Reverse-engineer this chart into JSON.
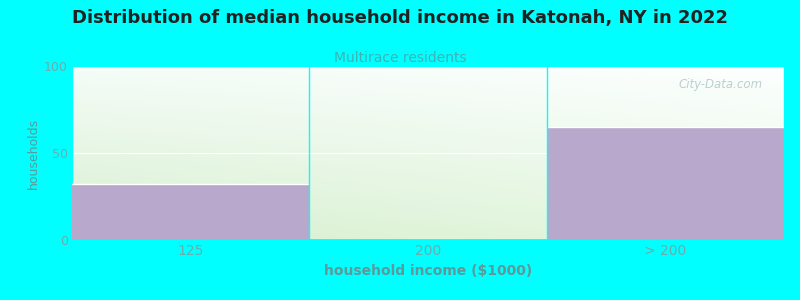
{
  "title": "Distribution of median household income in Katonah, NY in 2022",
  "subtitle": "Multirace residents",
  "xlabel": "household income ($1000)",
  "ylabel": "households",
  "categories": [
    "125",
    "200",
    "> 200"
  ],
  "values": [
    32,
    0,
    65
  ],
  "ylim": [
    0,
    100
  ],
  "yticks": [
    0,
    50,
    100
  ],
  "bar_color": "#b8a8cc",
  "background_color": "#00ffff",
  "title_fontsize": 13,
  "title_fontweight": "bold",
  "subtitle_fontsize": 10,
  "subtitle_color": "#3ab5b5",
  "axis_label_color": "#5a9a9a",
  "tick_label_color": "#6aadad",
  "watermark_text": "City-Data.com",
  "watermark_color": "#b0c8c8",
  "grad_bottom_left": "#d8efd0",
  "grad_top_right": "#f8fffe"
}
